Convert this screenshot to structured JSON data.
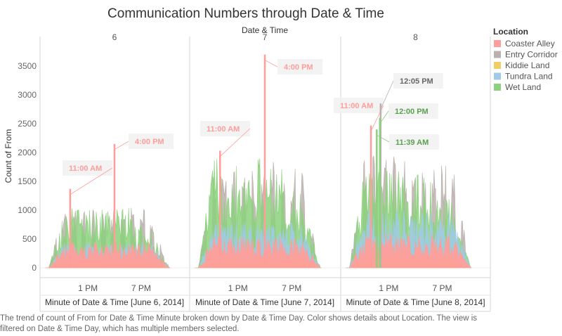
{
  "chart_data": {
    "type": "area",
    "title": "Communication Numbers through Date & Time",
    "column_header": "Date & Time",
    "ylabel": "Count of From",
    "ylim": [
      0,
      3800
    ],
    "yticks": [
      0,
      500,
      1000,
      1500,
      2000,
      2500,
      3000,
      3500
    ],
    "xtick_labels": [
      "1 PM",
      "7 PM"
    ],
    "xtick_hours": [
      13,
      19
    ],
    "x_domain_hours": [
      8,
      24
    ],
    "legend_title": "Location",
    "legend_position": "right",
    "series": [
      {
        "name": "Coaster Alley",
        "color": "#FF9D9A"
      },
      {
        "name": "Entry Corridor",
        "color": "#BAB0AC"
      },
      {
        "name": "Kiddie Land",
        "color": "#F1CE63"
      },
      {
        "name": "Tundra Land",
        "color": "#A0CBE8"
      },
      {
        "name": "Wet Land",
        "color": "#8CD17D"
      }
    ],
    "panels": [
      {
        "header": "6",
        "xlabel": "Minute of Date & Time [June 6, 2014]",
        "series_peaks": {
          "Coaster Alley": 450,
          "Entry Corridor": 1050,
          "Kiddie Land": 150,
          "Tundra Land": 450,
          "Wet Land": 1050
        },
        "annotations": [
          {
            "label": "11:00 AM",
            "time_hours": 11.0,
            "value": 1370,
            "series": "Coaster Alley"
          },
          {
            "label": "4:00 PM",
            "time_hours": 16.0,
            "value": 2150,
            "series": "Coaster Alley"
          }
        ]
      },
      {
        "header": "7",
        "xlabel": "Minute of Date & Time [June 7, 2014]",
        "series_peaks": {
          "Coaster Alley": 550,
          "Entry Corridor": 1850,
          "Kiddie Land": 200,
          "Tundra Land": 800,
          "Wet Land": 1900
        },
        "annotations": [
          {
            "label": "11:00 AM",
            "time_hours": 11.0,
            "value": 2030,
            "series": "Coaster Alley"
          },
          {
            "label": "4:00 PM",
            "time_hours": 16.0,
            "value": 3700,
            "series": "Coaster Alley"
          }
        ]
      },
      {
        "header": "8",
        "xlabel": "Minute of Date & Time [June 8, 2014]",
        "series_peaks": {
          "Coaster Alley": 600,
          "Entry Corridor": 1950,
          "Kiddie Land": 200,
          "Tundra Land": 1000,
          "Wet Land": 1700
        },
        "annotations": [
          {
            "label": "11:00 AM",
            "time_hours": 11.0,
            "value": 2470,
            "series": "Coaster Alley"
          },
          {
            "label": "12:05 PM",
            "time_hours": 12.0833,
            "value": 2850,
            "series": "Entry Corridor"
          },
          {
            "label": "12:00 PM",
            "time_hours": 12.0,
            "value": 2600,
            "series": "Wet Land"
          },
          {
            "label": "11:39 AM",
            "time_hours": 11.65,
            "value": 2400,
            "series": "Wet Land"
          }
        ]
      }
    ]
  },
  "caption": "The trend of count of From for Date & Time Minute broken down by Date & Time Day.  Color shows details about Location. The view is filtered on Date & Time Day, which has multiple members selected."
}
